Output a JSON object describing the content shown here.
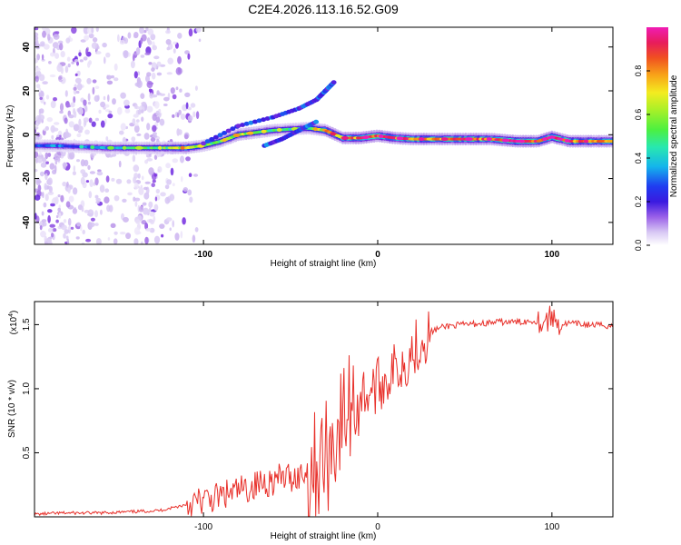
{
  "title": "C2E4.2026.113.16.52.G09",
  "colors": {
    "snr_line": "#e8302a",
    "axis": "#000000",
    "colormap": [
      "#ffffff",
      "#d8c8f4",
      "#b48ce8",
      "#7a2ee0",
      "#3a1ae0",
      "#1f3cf0",
      "#14b4ec",
      "#28e8b0",
      "#4cf040",
      "#a8f028",
      "#f4ec20",
      "#f8a418",
      "#f05020",
      "#e81c5c",
      "#f01cb4"
    ]
  },
  "chart_data": [
    {
      "type": "heatmap",
      "title": "C2E4.2026.113.16.52.G09",
      "xlabel": "Height of straight line (km)",
      "ylabel": "Frequency (Hz)",
      "xlim": [
        -197,
        135
      ],
      "ylim": [
        -50,
        49
      ],
      "x_ticks": [
        -100,
        0,
        100
      ],
      "x_tick_labels": [
        "-100",
        "0",
        "100"
      ],
      "y_ticks": [
        -40,
        -20,
        0,
        20,
        40
      ],
      "y_tick_labels": [
        "-40",
        "-20",
        "0",
        "20",
        "40"
      ],
      "colorbar": {
        "label": "Normalized spectral amplitude",
        "range": [
          0.0,
          1.0
        ],
        "ticks": [
          0.0,
          0.2,
          0.4,
          0.6,
          0.8
        ],
        "tick_labels": [
          "0.0",
          "0.2",
          "0.4",
          "0.6",
          "0.8"
        ]
      },
      "main_band": [
        [
          -197,
          -5,
          0.35
        ],
        [
          -185,
          -5,
          0.4
        ],
        [
          -170,
          -5.5,
          0.35
        ],
        [
          -155,
          -6,
          0.45
        ],
        [
          -140,
          -6,
          0.5
        ],
        [
          -125,
          -6,
          0.55
        ],
        [
          -110,
          -6,
          0.7
        ],
        [
          -100,
          -5,
          0.55
        ],
        [
          -90,
          -3,
          0.6
        ],
        [
          -80,
          0,
          0.65
        ],
        [
          -70,
          1,
          0.6
        ],
        [
          -60,
          2,
          0.55
        ],
        [
          -50,
          2.5,
          0.5
        ],
        [
          -40,
          3,
          0.55
        ],
        [
          -30,
          2,
          0.75
        ],
        [
          -20,
          -1.5,
          0.8
        ],
        [
          -10,
          -1.5,
          0.85
        ],
        [
          0,
          -0.5,
          0.9
        ],
        [
          10,
          -1.5,
          0.85
        ],
        [
          20,
          -2,
          0.85
        ],
        [
          35,
          -2,
          0.8
        ],
        [
          50,
          -2,
          0.85
        ],
        [
          65,
          -2,
          0.85
        ],
        [
          80,
          -3,
          0.92
        ],
        [
          92,
          -3,
          0.9
        ],
        [
          100,
          -1,
          0.95
        ],
        [
          110,
          -3,
          0.85
        ],
        [
          125,
          -3,
          0.8
        ],
        [
          135,
          -3,
          0.75
        ]
      ],
      "upper_branch": [
        [
          -100,
          -4
        ],
        [
          -80,
          4
        ],
        [
          -60,
          8
        ],
        [
          -45,
          12
        ],
        [
          -35,
          16
        ],
        [
          -30,
          20
        ],
        [
          -25,
          24
        ]
      ],
      "lower_branch": [
        [
          -65,
          -5
        ],
        [
          -55,
          -2
        ],
        [
          -45,
          2
        ],
        [
          -35,
          6
        ]
      ]
    },
    {
      "type": "line",
      "xlabel": "Height of straight line (km)",
      "ylabel": "SNR (10 * v/v)",
      "y_scale_label": "(x10",
      "y_scale_exponent": "4",
      "xlim": [
        -197,
        135
      ],
      "ylim": [
        0.0,
        1.68
      ],
      "x_ticks": [
        -100,
        0,
        100
      ],
      "x_tick_labels": [
        "-100",
        "0",
        "100"
      ],
      "y_ticks": [
        0.5,
        1.0,
        1.5
      ],
      "y_tick_labels": [
        "0.5",
        "1.0",
        "1.5"
      ],
      "series": [
        {
          "name": "SNR",
          "x": [
            -197,
            -180,
            -160,
            -140,
            -125,
            -115,
            -105,
            -95,
            -85,
            -75,
            -65,
            -55,
            -45,
            -38,
            -33,
            -28,
            -25,
            -20,
            -15,
            -10,
            -5,
            0,
            5,
            10,
            15,
            20,
            25,
            30,
            35,
            40,
            50,
            60,
            70,
            80,
            90,
            95,
            100,
            105,
            110,
            120,
            135
          ],
          "y": [
            0.02,
            0.03,
            0.03,
            0.04,
            0.05,
            0.08,
            0.11,
            0.14,
            0.18,
            0.22,
            0.27,
            0.3,
            0.32,
            0.38,
            0.42,
            0.5,
            0.62,
            0.75,
            0.9,
            0.95,
            0.98,
            1.02,
            1.08,
            1.15,
            1.2,
            1.3,
            1.38,
            1.44,
            1.47,
            1.49,
            1.5,
            1.51,
            1.52,
            1.52,
            1.53,
            1.52,
            1.56,
            1.5,
            1.51,
            1.5,
            1.49
          ]
        }
      ]
    }
  ]
}
